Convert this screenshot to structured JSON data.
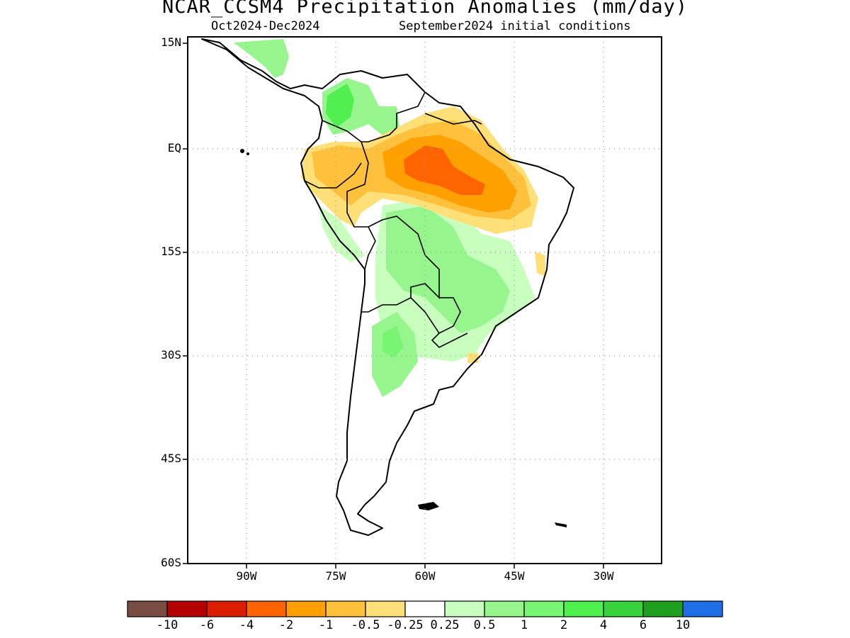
{
  "title": "NCAR_CCSM4 Precipitation Anomalies (mm/day)",
  "subtitle_period": "Oct2024-Dec2024",
  "subtitle_init": "September2024 initial conditions",
  "lat_labels": [
    "15N",
    "EQ",
    "15S",
    "30S",
    "45S",
    "60S"
  ],
  "lon_labels": [
    "90W",
    "75W",
    "60W",
    "45W",
    "30W"
  ],
  "colorbar": {
    "colors": [
      "#7a4d42",
      "#b40000",
      "#dc1e00",
      "#ff6400",
      "#ffa000",
      "#ffc03c",
      "#ffe078",
      "#ffffff",
      "#c8ffbe",
      "#96f58c",
      "#78f573",
      "#50f050",
      "#37d23c",
      "#1ea01e",
      "#1e6ee6"
    ],
    "labels": [
      "-10",
      "-6",
      "-4",
      "-2",
      "-1",
      "-0.5",
      "-0.25",
      "0.25",
      "0.5",
      "1",
      "2",
      "4",
      "6",
      "10"
    ]
  }
}
